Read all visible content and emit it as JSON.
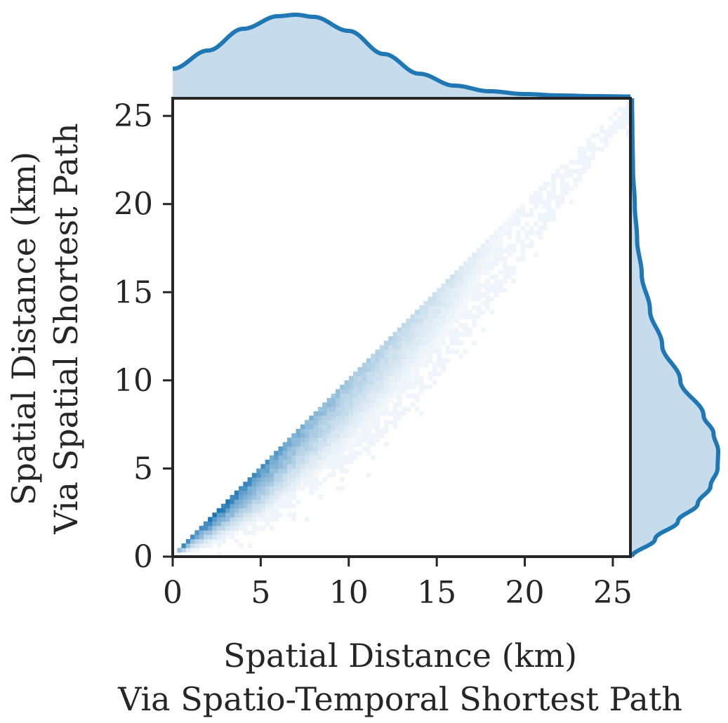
{
  "chart_data": {
    "type": "heatmap",
    "subtype": "jointplot-2d-histogram-with-marginal-kde",
    "title": "",
    "xlabel_lines": [
      "Spatial Distance (km)",
      "Via Spatio-Temporal Shortest Path"
    ],
    "ylabel_lines": [
      "Spatial Distance (km)",
      "Via Spatial Shortest Path"
    ],
    "xlim": [
      0,
      26
    ],
    "ylim": [
      0,
      26
    ],
    "xticks": [
      0,
      5,
      10,
      15,
      20,
      25
    ],
    "yticks": [
      0,
      5,
      10,
      15,
      20,
      25
    ],
    "bin_width_km": 0.25,
    "color": "#1f77b4",
    "fill_color": "#c6dcec",
    "grid": false,
    "joint_hist": {
      "description_of_shape": "density concentrated in triangular wedge below diagonal y = x",
      "upper_edge": "y = x",
      "lower_edge_points": [
        [
          2,
          0.3
        ],
        [
          5,
          1.5
        ],
        [
          10,
          5
        ],
        [
          15,
          10
        ],
        [
          20,
          17
        ],
        [
          25,
          24
        ]
      ],
      "peak_density_near": [
        3,
        2.5
      ],
      "max_observed": [
        25,
        25
      ]
    },
    "marginal_x_kde": {
      "x": [
        0,
        2,
        4,
        6,
        7,
        8,
        10,
        12,
        14,
        16,
        18,
        20,
        22,
        24,
        26
      ],
      "density": [
        0.04,
        0.066,
        0.097,
        0.115,
        0.117,
        0.114,
        0.094,
        0.061,
        0.033,
        0.016,
        0.008,
        0.004,
        0.002,
        0.001,
        0.0005
      ]
    },
    "marginal_y_kde": {
      "y": [
        0,
        1,
        2,
        3,
        4,
        5,
        6,
        7,
        8,
        10,
        12,
        14,
        16,
        18,
        20,
        22,
        24,
        26
      ],
      "density": [
        0.0,
        0.04,
        0.079,
        0.113,
        0.135,
        0.147,
        0.148,
        0.14,
        0.123,
        0.083,
        0.052,
        0.031,
        0.017,
        0.009,
        0.005,
        0.002,
        0.001,
        0.0003
      ]
    }
  }
}
